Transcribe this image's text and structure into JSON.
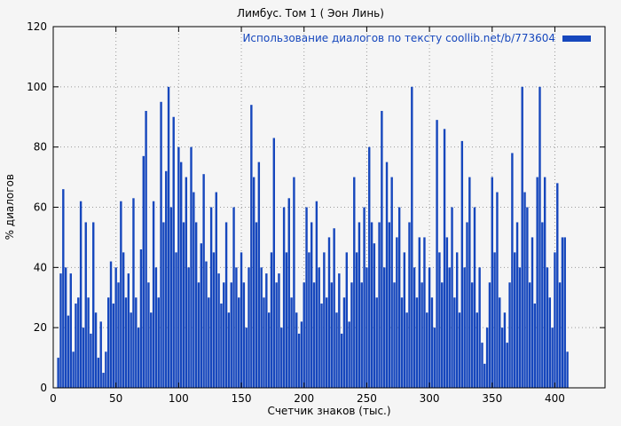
{
  "colors": {
    "series": "#1647bd",
    "background": "#f5f5f5",
    "grid": "#9a9a9a",
    "axis": "#000000"
  },
  "chart_data": {
    "type": "bar",
    "title": "Лимбус. Том 1 ( Эон Линь)",
    "legend": "Использование диалогов по тексту coollib.net/b/773604",
    "xlabel": "Счетчик знаков (тыс.)",
    "ylabel": "% диалогов",
    "xlim": [
      0,
      440
    ],
    "ylim": [
      0,
      120
    ],
    "x_ticks": [
      0,
      50,
      100,
      150,
      200,
      250,
      300,
      350,
      400
    ],
    "y_ticks": [
      0,
      20,
      40,
      60,
      80,
      100,
      120
    ],
    "grid": true,
    "legend_position": "top-right",
    "x": [
      4,
      6,
      8,
      10,
      12,
      14,
      16,
      18,
      20,
      22,
      24,
      26,
      28,
      30,
      32,
      34,
      36,
      38,
      40,
      42,
      44,
      46,
      48,
      50,
      52,
      54,
      56,
      58,
      60,
      62,
      64,
      66,
      68,
      70,
      72,
      74,
      76,
      78,
      80,
      82,
      84,
      86,
      88,
      90,
      92,
      94,
      96,
      98,
      100,
      102,
      104,
      106,
      108,
      110,
      112,
      114,
      116,
      118,
      120,
      122,
      124,
      126,
      128,
      130,
      132,
      134,
      136,
      138,
      140,
      142,
      144,
      146,
      148,
      150,
      152,
      154,
      156,
      158,
      160,
      162,
      164,
      166,
      168,
      170,
      172,
      174,
      176,
      178,
      180,
      182,
      184,
      186,
      188,
      190,
      192,
      194,
      196,
      198,
      200,
      202,
      204,
      206,
      208,
      210,
      212,
      214,
      216,
      218,
      220,
      222,
      224,
      226,
      228,
      230,
      232,
      234,
      236,
      238,
      240,
      242,
      244,
      246,
      248,
      250,
      252,
      254,
      256,
      258,
      260,
      262,
      264,
      266,
      268,
      270,
      272,
      274,
      276,
      278,
      280,
      282,
      284,
      286,
      288,
      290,
      292,
      294,
      296,
      298,
      300,
      302,
      304,
      306,
      308,
      310,
      312,
      314,
      316,
      318,
      320,
      322,
      324,
      326,
      328,
      330,
      332,
      334,
      336,
      338,
      340,
      342,
      344,
      346,
      348,
      350,
      352,
      354,
      356,
      358,
      360,
      362,
      364,
      366,
      368,
      370,
      372,
      374,
      376,
      378,
      380,
      382,
      384,
      386,
      388,
      390,
      392,
      394,
      396,
      398,
      400,
      402,
      404,
      406,
      408,
      410
    ],
    "values": [
      10,
      38,
      66,
      40,
      24,
      38,
      12,
      28,
      30,
      62,
      20,
      55,
      30,
      18,
      55,
      25,
      10,
      22,
      5,
      12,
      30,
      42,
      28,
      40,
      35,
      62,
      45,
      30,
      38,
      25,
      63,
      30,
      20,
      46,
      77,
      92,
      35,
      25,
      62,
      40,
      30,
      95,
      55,
      72,
      100,
      60,
      90,
      45,
      80,
      75,
      55,
      70,
      40,
      80,
      65,
      55,
      35,
      48,
      71,
      42,
      30,
      60,
      45,
      65,
      38,
      28,
      35,
      55,
      25,
      35,
      60,
      40,
      30,
      45,
      35,
      20,
      40,
      94,
      70,
      55,
      75,
      40,
      30,
      38,
      25,
      45,
      83,
      35,
      38,
      20,
      60,
      45,
      63,
      30,
      70,
      25,
      18,
      22,
      35,
      60,
      45,
      55,
      35,
      62,
      40,
      28,
      45,
      30,
      50,
      35,
      53,
      25,
      38,
      18,
      30,
      45,
      22,
      35,
      70,
      45,
      55,
      35,
      60,
      40,
      80,
      55,
      48,
      30,
      55,
      92,
      40,
      75,
      55,
      70,
      35,
      50,
      60,
      30,
      45,
      25,
      55,
      100,
      40,
      30,
      50,
      35,
      50,
      25,
      40,
      30,
      20,
      89,
      45,
      35,
      86,
      50,
      40,
      60,
      30,
      45,
      25,
      82,
      40,
      55,
      70,
      35,
      60,
      25,
      40,
      15,
      8,
      20,
      35,
      70,
      45,
      65,
      30,
      20,
      25,
      15,
      35,
      78,
      45,
      55,
      40,
      100,
      65,
      60,
      35,
      50,
      28,
      70,
      100,
      55,
      70,
      40,
      30,
      20,
      45,
      68,
      35,
      50,
      50,
      12
    ]
  }
}
